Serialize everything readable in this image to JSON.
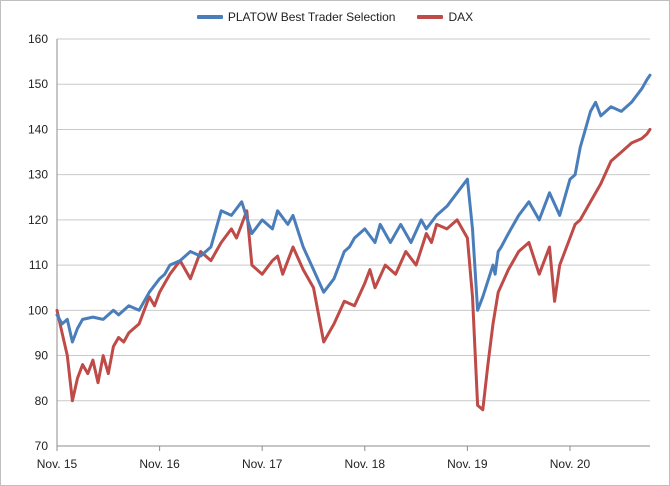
{
  "chart_data": {
    "type": "line",
    "title": "",
    "xlabel": "",
    "ylabel": "",
    "ylim": [
      70,
      160
    ],
    "yticks": [
      70,
      80,
      90,
      100,
      110,
      120,
      130,
      140,
      150,
      160
    ],
    "xticks": [
      "Nov. 15",
      "Nov. 16",
      "Nov. 17",
      "Nov. 18",
      "Nov. 19",
      "Nov. 20"
    ],
    "grid": "horizontal",
    "legend": "top-center",
    "x_note": "x values are years elapsed since the first tick (Nov. 15 = 0)",
    "series": [
      {
        "name": "PLATOW Best Trader Selection",
        "color": "#4a7ebb",
        "x": [
          0,
          0.05,
          0.1,
          0.15,
          0.2,
          0.25,
          0.35,
          0.45,
          0.55,
          0.6,
          0.7,
          0.8,
          0.9,
          1.0,
          1.05,
          1.1,
          1.2,
          1.3,
          1.4,
          1.5,
          1.6,
          1.7,
          1.8,
          1.9,
          2.0,
          2.1,
          2.15,
          2.25,
          2.3,
          2.4,
          2.5,
          2.6,
          2.7,
          2.8,
          2.85,
          2.9,
          3.0,
          3.1,
          3.15,
          3.25,
          3.35,
          3.45,
          3.55,
          3.6,
          3.7,
          3.8,
          3.9,
          4.0,
          4.05,
          4.1,
          4.15,
          4.25,
          4.27,
          4.3,
          4.33,
          4.4,
          4.5,
          4.6,
          4.7,
          4.8,
          4.9,
          5.0,
          5.05,
          5.1,
          5.2,
          5.25,
          5.3,
          5.4,
          5.5,
          5.6,
          5.7,
          5.75,
          5.78
        ],
        "values": [
          99,
          97,
          98,
          93,
          96,
          98,
          98.5,
          98,
          100,
          99,
          101,
          100,
          104,
          107,
          108,
          110,
          111,
          113,
          112,
          114,
          122,
          121,
          124,
          117,
          120,
          118,
          122,
          119,
          121,
          114,
          109,
          104,
          107,
          113,
          114,
          116,
          118,
          115,
          119,
          115,
          119,
          115,
          120,
          118,
          121,
          123,
          126,
          129,
          118,
          100,
          103,
          110,
          108,
          113,
          114,
          117,
          121,
          124,
          120,
          126,
          121,
          129,
          130,
          136,
          144,
          146,
          143,
          145,
          144,
          146,
          149,
          151,
          152
        ]
      },
      {
        "name": "DAX",
        "color": "#be4b48",
        "x": [
          0,
          0.05,
          0.1,
          0.15,
          0.2,
          0.25,
          0.3,
          0.35,
          0.4,
          0.45,
          0.5,
          0.55,
          0.6,
          0.65,
          0.7,
          0.75,
          0.8,
          0.85,
          0.9,
          0.95,
          1.0,
          1.05,
          1.1,
          1.2,
          1.3,
          1.4,
          1.5,
          1.6,
          1.7,
          1.75,
          1.8,
          1.85,
          1.9,
          2.0,
          2.1,
          2.15,
          2.2,
          2.3,
          2.4,
          2.5,
          2.6,
          2.7,
          2.8,
          2.9,
          3.0,
          3.05,
          3.1,
          3.2,
          3.3,
          3.4,
          3.5,
          3.6,
          3.65,
          3.7,
          3.8,
          3.9,
          4.0,
          4.05,
          4.1,
          4.15,
          4.2,
          4.25,
          4.3,
          4.4,
          4.5,
          4.6,
          4.7,
          4.8,
          4.85,
          4.9,
          5.0,
          5.05,
          5.1,
          5.2,
          5.3,
          5.4,
          5.5,
          5.6,
          5.7,
          5.75,
          5.78
        ],
        "values": [
          100,
          95,
          90,
          80,
          85,
          88,
          86,
          89,
          84,
          90,
          86,
          92,
          94,
          93,
          95,
          96,
          97,
          100,
          103,
          101,
          104,
          106,
          108,
          111,
          107,
          113,
          111,
          115,
          118,
          116,
          119,
          122,
          110,
          108,
          111,
          112,
          108,
          114,
          109,
          105,
          93,
          97,
          102,
          101,
          106,
          109,
          105,
          110,
          108,
          113,
          110,
          117,
          115,
          119,
          118,
          120,
          116,
          103,
          79,
          78,
          88,
          97,
          104,
          109,
          113,
          115,
          108,
          114,
          102,
          110,
          116,
          119,
          120,
          124,
          128,
          133,
          135,
          137,
          138,
          139,
          140
        ]
      }
    ]
  }
}
